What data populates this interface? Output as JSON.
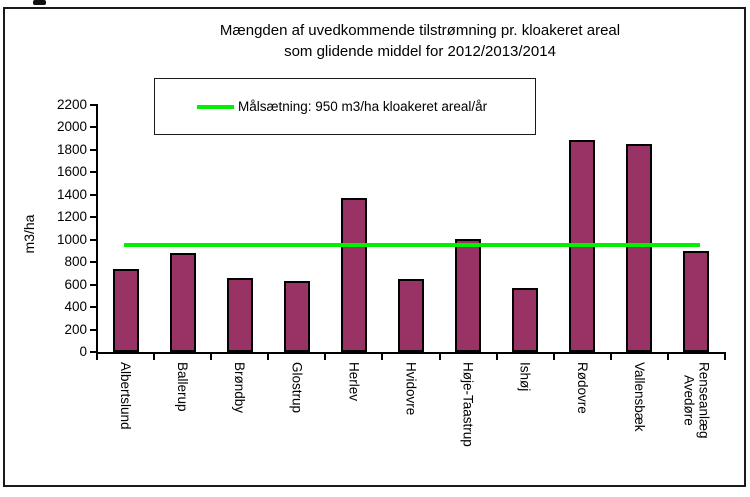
{
  "chart_data": {
    "type": "bar",
    "title": [
      "Mængden af uvedkommende tilstrømning pr. kloakeret areal",
      "som glidende middel for 2012/2013/2014"
    ],
    "ylabel": "m3/ha",
    "categories": [
      "Albertslund",
      "Ballerup",
      "Brøndby",
      "Glostrup",
      "Herlev",
      "Hvidovre",
      "Høje-Taastrup",
      "Ishøj",
      "Rødovre",
      "Vallensbæk",
      "Renseanlæg\nAvedøre"
    ],
    "values": [
      740,
      880,
      660,
      630,
      1370,
      650,
      1010,
      570,
      1890,
      1850,
      900
    ],
    "target_line": {
      "label": "Målsætning: 950 m3/ha kloakeret areal/år",
      "value": 950,
      "color": "#00f000"
    },
    "ylim": [
      0,
      2200
    ],
    "ytick_interval": 200,
    "bar_color": "#993366",
    "bar_border_color": "#000000",
    "axis_color": "#000000",
    "legend_position": "top-center",
    "grid": false,
    "x_label_rotation": "vertical-down"
  }
}
